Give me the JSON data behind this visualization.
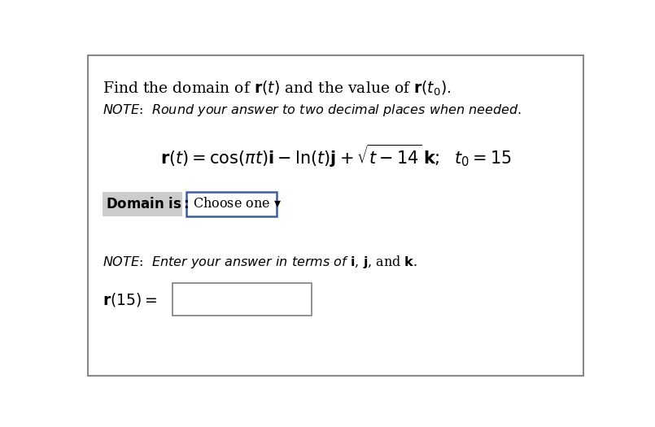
{
  "bg_color": "#ffffff",
  "border_color": "#888888",
  "dropdown_border": "#3a5fa0",
  "domain_bg": "#cccccc",
  "text_color": "#000000",
  "figsize": [
    8.05,
    5.25
  ],
  "dpi": 100
}
